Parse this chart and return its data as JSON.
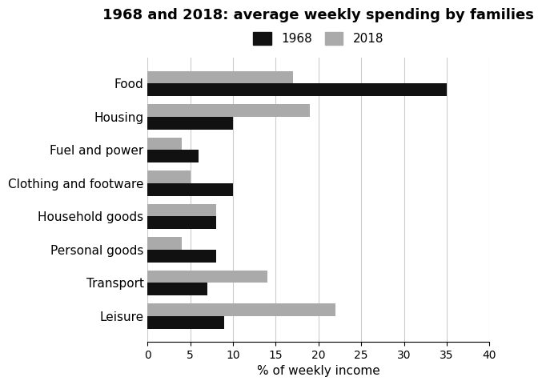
{
  "title": "1968 and 2018: average weekly spending by families",
  "categories": [
    "Food",
    "Housing",
    "Fuel and power",
    "Clothing and footware",
    "Household goods",
    "Personal goods",
    "Transport",
    "Leisure"
  ],
  "values_1968": [
    35,
    10,
    6,
    10,
    8,
    8,
    7,
    9
  ],
  "values_2018": [
    17,
    19,
    4,
    5,
    8,
    4,
    14,
    22
  ],
  "color_1968": "#111111",
  "color_2018": "#aaaaaa",
  "xlabel": "% of weekly income",
  "xlim": [
    0,
    40
  ],
  "xticks": [
    0,
    5,
    10,
    15,
    20,
    25,
    30,
    35,
    40
  ],
  "legend_labels": [
    "1968",
    "2018"
  ],
  "bar_height": 0.38,
  "title_fontsize": 13,
  "label_fontsize": 11,
  "tick_fontsize": 10,
  "background_color": "#ffffff"
}
